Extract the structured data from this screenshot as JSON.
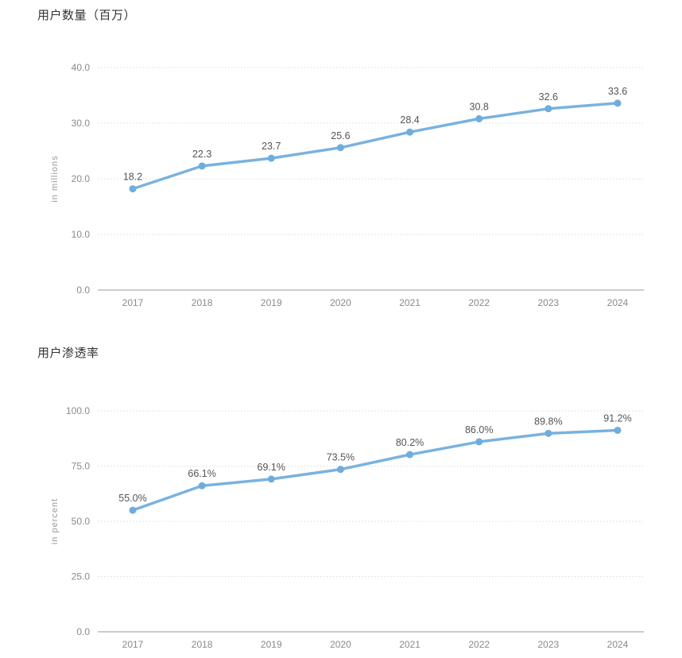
{
  "colors": {
    "line": "#79b2df",
    "marker": "#6faddd",
    "grid": "#dcdcdc",
    "axis_line": "#9a9a9a",
    "tick_label": "#8a8a8a",
    "data_label": "#555555",
    "title": "#333333",
    "ylabel": "#999999"
  },
  "chart_data": [
    {
      "type": "line",
      "title": "用户数量（百万）",
      "ylabel": "in millions",
      "x": [
        "2017",
        "2018",
        "2019",
        "2020",
        "2021",
        "2022",
        "2023",
        "2024"
      ],
      "values": [
        18.2,
        22.3,
        23.7,
        25.6,
        28.4,
        30.8,
        32.6,
        33.6
      ],
      "data_labels": [
        "18.2",
        "22.3",
        "23.7",
        "25.6",
        "28.4",
        "30.8",
        "32.6",
        "33.6"
      ],
      "ylim": [
        0,
        40
      ],
      "yticks": [
        40,
        30,
        20,
        10,
        0
      ],
      "ytick_labels": [
        "40.0",
        "30.0",
        "20.0",
        "10.0",
        "0.0"
      ],
      "grid": "horizontal-dotted",
      "legend": "none"
    },
    {
      "type": "line",
      "title": "用户渗透率",
      "ylabel": "in percent",
      "x": [
        "2017",
        "2018",
        "2019",
        "2020",
        "2021",
        "2022",
        "2023",
        "2024"
      ],
      "values": [
        55.0,
        66.1,
        69.1,
        73.5,
        80.2,
        86.0,
        89.8,
        91.2
      ],
      "data_labels": [
        "55.0%",
        "66.1%",
        "69.1%",
        "73.5%",
        "80.2%",
        "86.0%",
        "89.8%",
        "91.2%"
      ],
      "ylim": [
        0,
        100
      ],
      "yticks": [
        100,
        75,
        50,
        25,
        0
      ],
      "ytick_labels": [
        "100.0",
        "75.0",
        "50.0",
        "25.0",
        "0.0"
      ],
      "grid": "horizontal-dotted",
      "legend": "none"
    }
  ]
}
